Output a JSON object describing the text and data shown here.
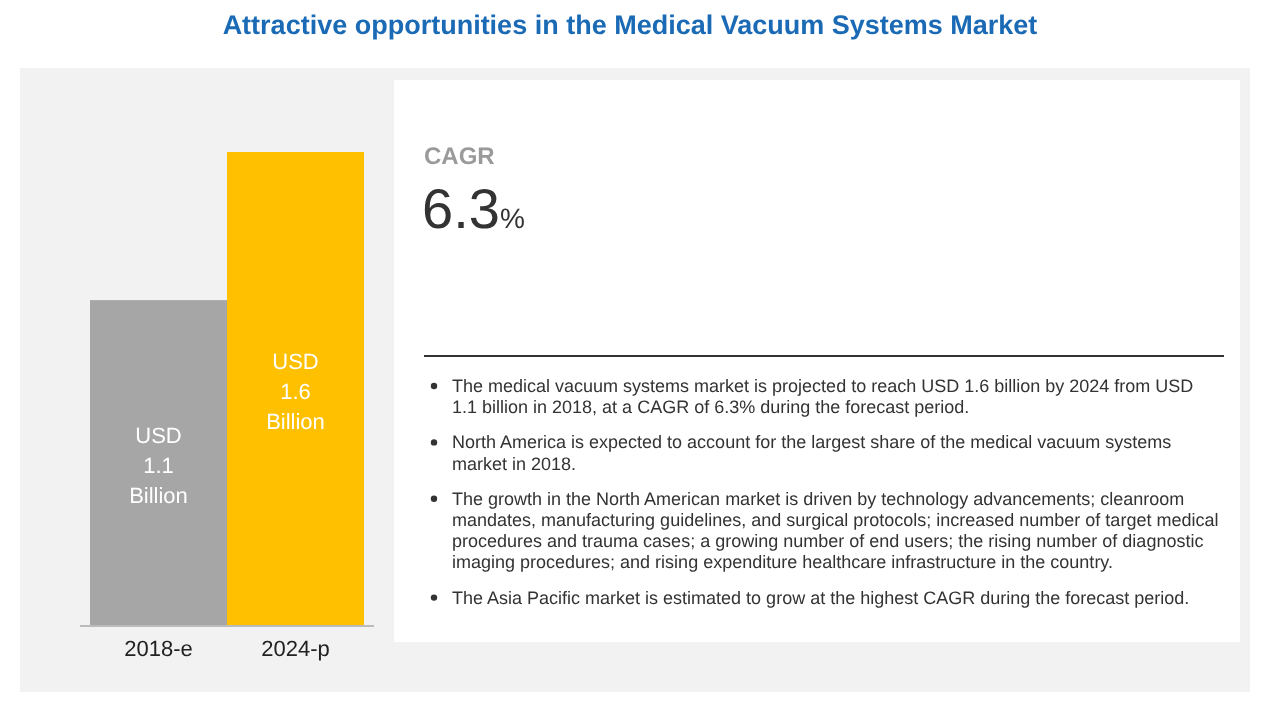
{
  "chart_data": {
    "type": "bar",
    "title": "Attractive opportunities in the Medical Vacuum Systems Market",
    "categories": [
      "2018-e",
      "2024-p"
    ],
    "values": [
      1.1,
      1.6
    ],
    "colors": [
      "#a6a6a6",
      "#ffc000"
    ],
    "value_labels": [
      "USD 1.1 Billion",
      "USD 1.6 Billion"
    ],
    "annotations": [
      "CAGR",
      "6.3%",
      "The medical vacuum systems market is projected to reach USD 1.6 billion by 2024 from USD 1.1 billion in 2018, at a CAGR of 6.3% during the forecast period.",
      "North America is expected to account for the largest share of the medical vacuum systems market in 2018.",
      "The growth in the North American market is driven by technology advancements; cleanroom mandates, manufacturing guidelines, and surgical protocols; increased number of target medical procedures and trauma cases; a growing number of end users; the rising number of diagnostic imaging procedures; and rising expenditure healthcare infrastructure in the country.",
      "The Asia Pacific market is estimated to grow at the highest CAGR during the forecast period."
    ]
  }
}
